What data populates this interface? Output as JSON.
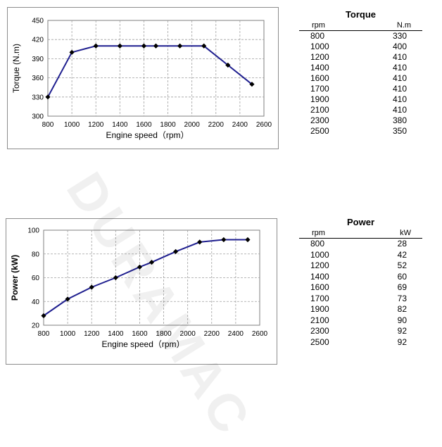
{
  "chart_data": [
    {
      "type": "line",
      "x": [
        800,
        1000,
        1200,
        1400,
        1600,
        1700,
        1900,
        2100,
        2300,
        2500
      ],
      "series": [
        {
          "values": [
            330,
            400,
            410,
            410,
            410,
            410,
            410,
            410,
            380,
            350
          ]
        }
      ],
      "xlabel": "Engine speed（rpm）",
      "ylabel": "Torque (N.m)",
      "xlim": [
        800,
        2600
      ],
      "ylim": [
        300,
        450
      ],
      "xticks": [
        800,
        1000,
        1200,
        1400,
        1600,
        1800,
        2000,
        2200,
        2400,
        2600
      ],
      "yticks": [
        300,
        330,
        360,
        390,
        420,
        450
      ],
      "grid": true,
      "line_color": "#1f1f8f"
    },
    {
      "type": "line",
      "x": [
        800,
        1000,
        1200,
        1400,
        1600,
        1700,
        1900,
        2100,
        2300,
        2500
      ],
      "series": [
        {
          "values": [
            28,
            42,
            52,
            60,
            69,
            73,
            82,
            90,
            92,
            92
          ]
        }
      ],
      "xlabel": "Engine speed（rpm）",
      "ylabel": "Power (kW)",
      "xlim": [
        800,
        2600
      ],
      "ylim": [
        20,
        100
      ],
      "xticks": [
        800,
        1000,
        1200,
        1400,
        1600,
        1800,
        2000,
        2200,
        2400,
        2600
      ],
      "yticks": [
        20,
        40,
        60,
        80,
        100
      ],
      "grid": true,
      "line_color": "#1f1f8f"
    }
  ],
  "torque_table": {
    "title": "Torque",
    "col1": "rpm",
    "col2": "N.m",
    "rows": [
      [
        "800",
        "330"
      ],
      [
        "1000",
        "400"
      ],
      [
        "1200",
        "410"
      ],
      [
        "1400",
        "410"
      ],
      [
        "1600",
        "410"
      ],
      [
        "1700",
        "410"
      ],
      [
        "1900",
        "410"
      ],
      [
        "2100",
        "410"
      ],
      [
        "2300",
        "380"
      ],
      [
        "2500",
        "350"
      ]
    ]
  },
  "power_table": {
    "title": "Power",
    "col1": "rpm",
    "col2": "kW",
    "rows": [
      [
        "800",
        "28"
      ],
      [
        "1000",
        "42"
      ],
      [
        "1200",
        "52"
      ],
      [
        "1400",
        "60"
      ],
      [
        "1600",
        "69"
      ],
      [
        "1700",
        "73"
      ],
      [
        "1900",
        "82"
      ],
      [
        "2100",
        "90"
      ],
      [
        "2300",
        "92"
      ],
      [
        "2500",
        "92"
      ]
    ]
  },
  "watermark": "DURAMAC"
}
